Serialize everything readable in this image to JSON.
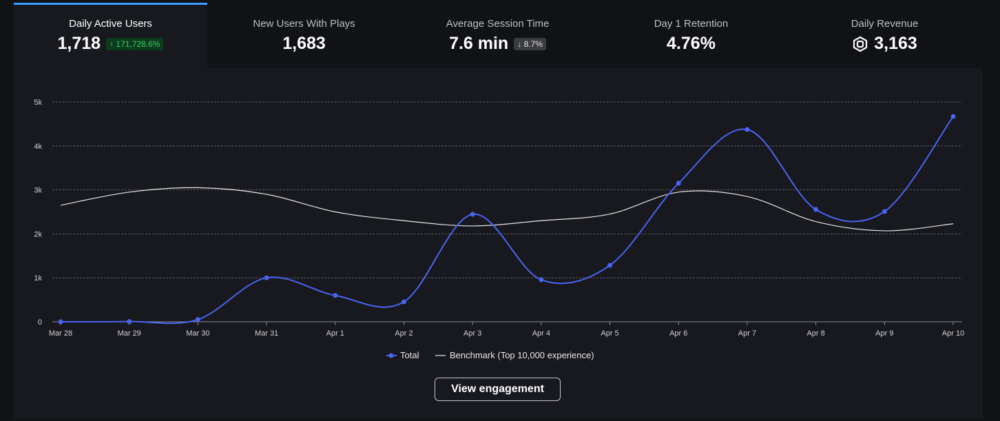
{
  "tabs": [
    {
      "label": "Daily Active Users",
      "value": "1,718",
      "change": "171,728.6%",
      "direction": "up",
      "active": true
    },
    {
      "label": "New Users With Plays",
      "value": "1,683"
    },
    {
      "label": "Average Session Time",
      "value": "7.6 min",
      "change": "8.7%",
      "direction": "down"
    },
    {
      "label": "Day 1 Retention",
      "value": "4.76%"
    },
    {
      "label": "Daily Revenue",
      "value": "3,163",
      "icon": "robux-icon"
    }
  ],
  "chart_data": {
    "type": "line",
    "categories": [
      "Mar 28",
      "Mar 29",
      "Mar 30",
      "Mar 31",
      "Apr 1",
      "Apr 2",
      "Apr 3",
      "Apr 4",
      "Apr 5",
      "Apr 6",
      "Apr 7",
      "Apr 8",
      "Apr 9",
      "Apr 10"
    ],
    "series": [
      {
        "name": "Total",
        "color": "#4a63f0",
        "markers": true,
        "values": [
          0,
          5,
          50,
          1000,
          600,
          455,
          2445,
          956,
          1285,
          3150,
          4373,
          2555,
          2508,
          4670
        ]
      },
      {
        "name": "Benchmark (Top 10,000 experience)",
        "color": "#e8e8e8",
        "markers": false,
        "values": [
          2650,
          2950,
          3050,
          2900,
          2500,
          2300,
          2180,
          2300,
          2450,
          2950,
          2850,
          2280,
          2070,
          2230
        ]
      }
    ],
    "yticks": [
      "0",
      "1k",
      "2k",
      "3k",
      "4k",
      "5k"
    ],
    "ylim": [
      0,
      5000
    ],
    "grid": true,
    "legend": "bottom-center"
  },
  "actions": {
    "view_engagement": "View engagement"
  }
}
